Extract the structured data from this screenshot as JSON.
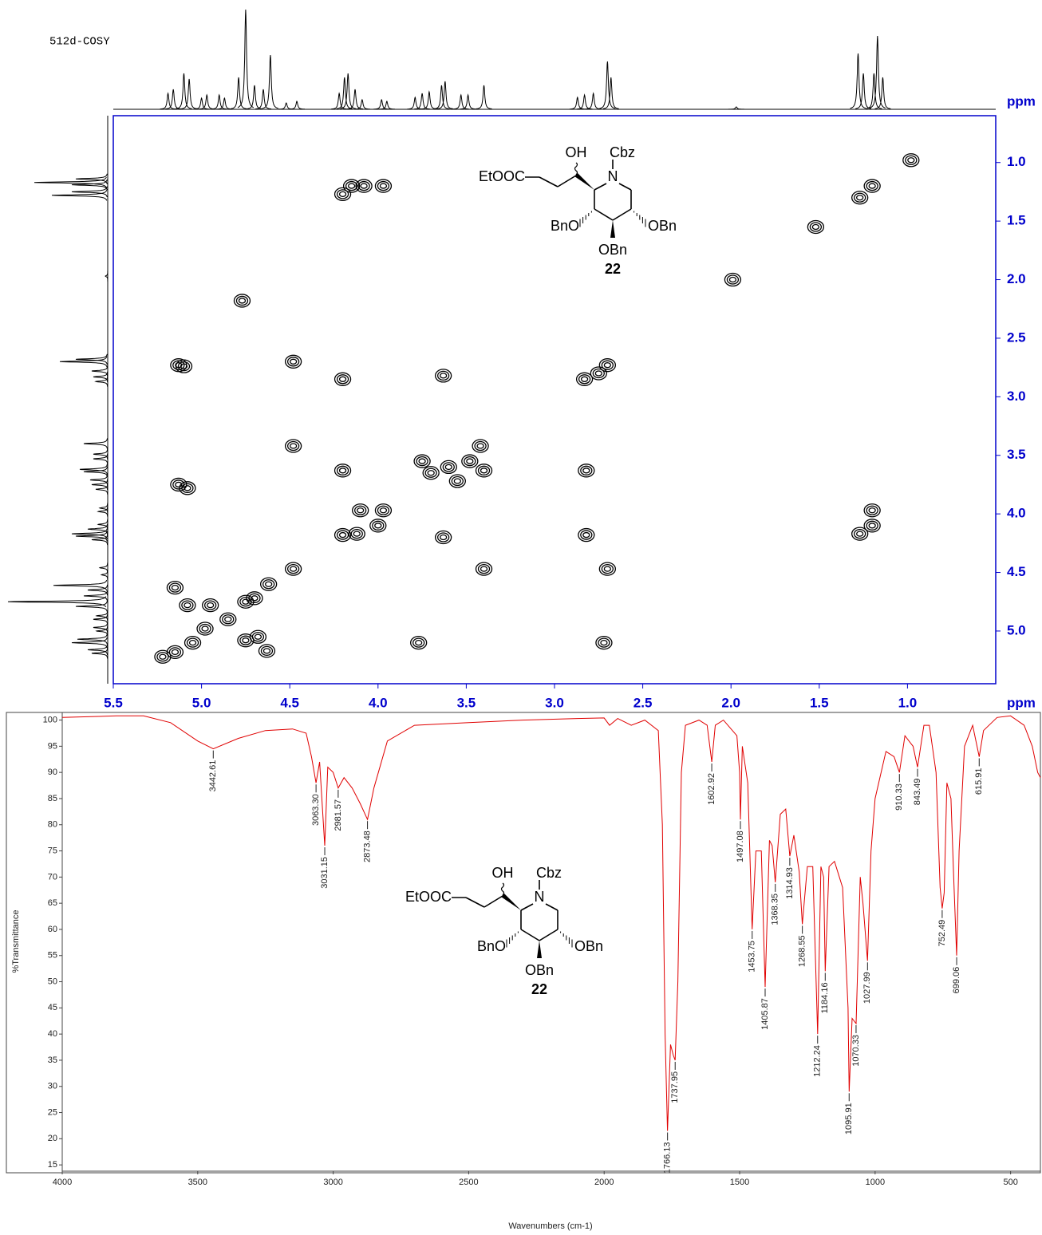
{
  "chart_data": [
    {
      "type": "cosy",
      "title": "512d-COSY",
      "x_label": "ppm",
      "y_label": "ppm",
      "xlim": [
        5.5,
        0.5
      ],
      "ylim": [
        0.6,
        5.45
      ],
      "xticks": [
        5.5,
        {
          "value": 5,
          "label": "5.0"
        },
        4.5,
        {
          "value": 4,
          "label": "4.0"
        },
        3.5,
        {
          "value": 3,
          "label": "3.0"
        },
        2.5,
        {
          "value": 2,
          "label": "2.0"
        },
        1.5,
        {
          "value": 1,
          "label": "1.0"
        }
      ],
      "yticks": [
        {
          "value": 1,
          "label": "1.0"
        },
        1.5,
        {
          "value": 2,
          "label": "2.0"
        },
        2.5,
        {
          "value": 3,
          "label": "3.0"
        },
        3.5,
        {
          "value": 4,
          "label": "4.0"
        },
        4.5,
        {
          "value": 5,
          "label": "5.0"
        }
      ],
      "color": "#000000",
      "axis_color": "#0000cc",
      "projection": {
        "x": [
          5.19,
          5.16,
          5.1,
          5.07,
          5.0,
          4.97,
          4.9,
          4.87,
          4.79,
          4.75,
          4.7,
          4.65,
          4.61,
          4.52,
          4.46,
          4.22,
          4.19,
          4.17,
          4.13,
          4.09,
          3.98,
          3.95,
          3.79,
          3.75,
          3.71,
          3.64,
          3.62,
          3.53,
          3.49,
          3.4,
          2.87,
          2.83,
          2.78,
          2.7,
          2.68,
          1.97,
          1.28,
          1.25,
          1.19,
          1.17,
          1.14
        ],
        "heights": [
          20,
          25,
          45,
          38,
          14,
          18,
          18,
          14,
          40,
          125,
          30,
          25,
          68,
          8,
          10,
          20,
          40,
          45,
          25,
          12,
          12,
          10,
          15,
          20,
          22,
          30,
          35,
          18,
          18,
          30,
          15,
          18,
          20,
          60,
          40,
          3,
          70,
          45,
          45,
          92,
          40
        ]
      },
      "cross_peaks": {
        "x": [
          4.2,
          4.15,
          4.08,
          3.97,
          1.27,
          1.2,
          0.98,
          1.52,
          1.99,
          4.77,
          5.13,
          5.1,
          4.48,
          4.2,
          3.63,
          2.83,
          2.75,
          2.7,
          4.48,
          4.2,
          3.75,
          3.7,
          3.6,
          3.55,
          3.48,
          3.42,
          3.4,
          2.82,
          5.13,
          5.08,
          4.1,
          3.97,
          4.2,
          4.12,
          4.0,
          3.63,
          2.82,
          1.27,
          1.2,
          1.2,
          3.4,
          2.7,
          4.48,
          5.15,
          5.08,
          4.95,
          4.85,
          4.75,
          4.7,
          4.62,
          5.05,
          4.98,
          4.75,
          4.68,
          4.63,
          5.15,
          5.22,
          3.77,
          2.72
        ],
        "y": [
          1.27,
          1.2,
          1.2,
          1.2,
          1.3,
          1.2,
          0.98,
          1.55,
          2.0,
          2.18,
          2.73,
          2.74,
          2.7,
          2.85,
          2.82,
          2.85,
          2.8,
          2.73,
          3.42,
          3.63,
          3.55,
          3.65,
          3.6,
          3.72,
          3.55,
          3.42,
          3.63,
          3.63,
          3.75,
          3.78,
          3.97,
          3.97,
          4.18,
          4.17,
          4.1,
          4.2,
          4.18,
          4.17,
          4.1,
          3.97,
          4.47,
          4.47,
          4.47,
          4.63,
          4.78,
          4.78,
          4.9,
          4.75,
          4.72,
          4.6,
          5.1,
          4.98,
          5.08,
          5.05,
          5.17,
          5.18,
          5.22,
          5.1,
          5.1
        ]
      },
      "structure_labels": [
        "EtOOC",
        "OH",
        "Cbz",
        "N",
        "BnO",
        "OBn",
        "OBn",
        "22"
      ]
    },
    {
      "type": "line",
      "x_label": "Wavenumbers (cm-1)",
      "y_label": "%Transmittance",
      "xlim": [
        4000,
        390
      ],
      "ylim": [
        13.8,
        101
      ],
      "xticks": [
        4000,
        3500,
        3000,
        2500,
        2000,
        1500,
        1000,
        500
      ],
      "yticks": [
        15,
        20,
        25,
        30,
        35,
        40,
        45,
        50,
        55,
        60,
        65,
        70,
        75,
        80,
        85,
        90,
        95,
        100
      ],
      "series": [
        {
          "color": "#e00000",
          "x": [
            4000,
            3800,
            3700,
            3600,
            3500,
            3442.61,
            3350,
            3250,
            3150,
            3100,
            3080,
            3063.3,
            3050,
            3031.15,
            3020,
            3000,
            2981.57,
            2960,
            2930,
            2900,
            2873.48,
            2850,
            2800,
            2700,
            2500,
            2300,
            2100,
            2000,
            1980,
            1950,
            1900,
            1850,
            1800,
            1785,
            1775,
            1766.13,
            1755,
            1745,
            1737.95,
            1728,
            1715,
            1700,
            1650,
            1620,
            1602.92,
            1590,
            1560,
            1510,
            1500,
            1497.08,
            1490,
            1470,
            1453.75,
            1440,
            1420,
            1405.87,
            1390,
            1380,
            1368.35,
            1350,
            1330,
            1314.93,
            1300,
            1280,
            1268.55,
            1250,
            1230,
            1212.24,
            1200,
            1190,
            1184.16,
            1170,
            1150,
            1120,
            1100,
            1095.91,
            1085,
            1070.33,
            1055,
            1045,
            1027.99,
            1015,
            1000,
            960,
            930,
            910.33,
            890,
            860,
            843.49,
            820,
            800,
            775,
            760,
            752.49,
            745,
            735,
            720,
            710,
            699.06,
            690,
            670,
            640,
            615.91,
            600,
            550,
            500,
            450,
            420,
            400,
            390
          ],
          "values": [
            100.5,
            100.8,
            100.8,
            99.5,
            96,
            94.5,
            96.5,
            98,
            98.3,
            97.5,
            93,
            88,
            92,
            76,
            91,
            90,
            87,
            89,
            87,
            84,
            81,
            87,
            96,
            99,
            99.5,
            100,
            100.3,
            100.4,
            99,
            100.3,
            99,
            100,
            98,
            80,
            40,
            21.5,
            38,
            36,
            35,
            50,
            90,
            99,
            100,
            99,
            92,
            99,
            100,
            97,
            90,
            81,
            95,
            88,
            60,
            75,
            75,
            49,
            77,
            76,
            69,
            82,
            83,
            74,
            78,
            71,
            61,
            72,
            72,
            40,
            72,
            70,
            52,
            72,
            73,
            68,
            45,
            29,
            43,
            42,
            70,
            65,
            54,
            75,
            85,
            94,
            93,
            90,
            97,
            95,
            91,
            99,
            99,
            90,
            68,
            64,
            67,
            88,
            85,
            70,
            55,
            75,
            95,
            99,
            93,
            98,
            100.5,
            100.8,
            99,
            95,
            90,
            89
          ]
        }
      ],
      "peaks": {
        "x": [
          3442.61,
          3063.3,
          3031.15,
          2981.57,
          2873.48,
          1766.13,
          1737.95,
          1602.92,
          1497.08,
          1453.75,
          1405.87,
          1368.35,
          1314.93,
          1268.55,
          1212.24,
          1184.16,
          1095.91,
          1070.33,
          1027.99,
          910.33,
          843.49,
          752.49,
          699.06,
          615.91
        ],
        "y": [
          94.5,
          88,
          76,
          87,
          81,
          21.5,
          35,
          92,
          81,
          60,
          49,
          69,
          74,
          61,
          40,
          52,
          29,
          42,
          54,
          90,
          91,
          64,
          55,
          93
        ],
        "labels": [
          "3442.61",
          "3063.30",
          "3031.15",
          "2981.57",
          "2873.48",
          "1766.13",
          "1737.95",
          "1602.92",
          "1497.08",
          "1453.75",
          "1405.87",
          "1368.35",
          "1314.93",
          "1268.55",
          "1212.24",
          "1184.16",
          "1095.91",
          "1070.33",
          "1027.99",
          "910.33",
          "843.49",
          "752.49",
          "699.06",
          "615.91"
        ]
      },
      "structure_labels": [
        "EtOOC",
        "OH",
        "Cbz",
        "N",
        "BnO",
        "OBn",
        "OBn",
        "22"
      ]
    }
  ]
}
